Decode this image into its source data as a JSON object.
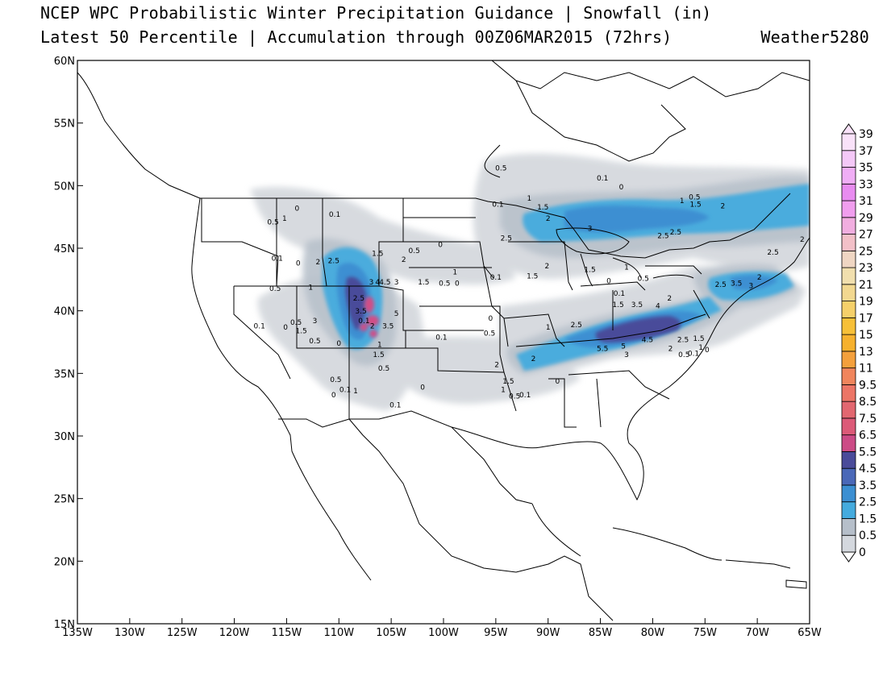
{
  "header": {
    "title_line1": "NCEP WPC Probabilistic Winter Precipitation Guidance | Snowfall (in)",
    "title_line2": "Latest 50 Percentile | Accumulation through 00Z06MAR2015 (72hrs)",
    "brand": "Weather5280"
  },
  "map": {
    "lon_range": [
      -135,
      -65
    ],
    "lat_range": [
      15,
      60
    ],
    "x_ticks": [
      "135W",
      "130W",
      "125W",
      "120W",
      "115W",
      "110W",
      "105W",
      "100W",
      "95W",
      "90W",
      "85W",
      "80W",
      "75W",
      "70W",
      "65W"
    ],
    "y_ticks": [
      "15N",
      "20N",
      "25N",
      "30N",
      "35N",
      "40N",
      "45N",
      "50N",
      "55N",
      "60N"
    ]
  },
  "colorbar": {
    "levels": [
      "0",
      "0.5",
      "1.5",
      "2.5",
      "3.5",
      "4.5",
      "5.5",
      "6.5",
      "7.5",
      "8.5",
      "9.5",
      "11",
      "13",
      "15",
      "17",
      "19",
      "21",
      "23",
      "25",
      "27",
      "29",
      "31",
      "33",
      "35",
      "37",
      "39"
    ],
    "colors": [
      "#ffffff",
      "#d4d8de",
      "#b6bfca",
      "#45abde",
      "#3c8fd2",
      "#4a68b8",
      "#4a4b9a",
      "#cc4b86",
      "#dc5a78",
      "#e26770",
      "#ec7566",
      "#f0855c",
      "#f4a03c",
      "#f6b12e",
      "#f7c038",
      "#f5d06a",
      "#f2d890",
      "#f1dfae",
      "#efd6c3",
      "#f2c0c8",
      "#f1aee0",
      "#f09eee",
      "#e88cf0",
      "#f0aef5",
      "#f4c8f7",
      "#f9e2f9"
    ]
  },
  "contour_labels": [
    {
      "text": "0.5",
      "lon": -94.5,
      "lat": 51.2
    },
    {
      "text": "0.1",
      "lon": -84.8,
      "lat": 50.4
    },
    {
      "text": "0",
      "lon": -83.0,
      "lat": 49.7
    },
    {
      "text": "1",
      "lon": -91.8,
      "lat": 48.8
    },
    {
      "text": "1.5",
      "lon": -90.5,
      "lat": 48.1
    },
    {
      "text": "0.1",
      "lon": -94.8,
      "lat": 48.3
    },
    {
      "text": "2",
      "lon": -90.0,
      "lat": 47.2
    },
    {
      "text": "3",
      "lon": -86.0,
      "lat": 46.4
    },
    {
      "text": "2.5",
      "lon": -79.0,
      "lat": 45.8
    },
    {
      "text": "2.5",
      "lon": -77.8,
      "lat": 46.1
    },
    {
      "text": "1",
      "lon": -77.2,
      "lat": 48.6
    },
    {
      "text": "0.5",
      "lon": -76.0,
      "lat": 48.9
    },
    {
      "text": "1.5",
      "lon": -75.9,
      "lat": 48.3
    },
    {
      "text": "2",
      "lon": -73.3,
      "lat": 48.2
    },
    {
      "text": "2.5",
      "lon": -94.0,
      "lat": 45.6
    },
    {
      "text": "0",
      "lon": -100.3,
      "lat": 45.1
    },
    {
      "text": "0.5",
      "lon": -102.8,
      "lat": 44.6
    },
    {
      "text": "1.5",
      "lon": -106.3,
      "lat": 44.4
    },
    {
      "text": "2",
      "lon": -103.8,
      "lat": 43.9
    },
    {
      "text": "0.1",
      "lon": -110.4,
      "lat": 47.5
    },
    {
      "text": "0",
      "lon": -114.0,
      "lat": 48.0
    },
    {
      "text": "0.5",
      "lon": -116.3,
      "lat": 46.9
    },
    {
      "text": "1",
      "lon": -115.2,
      "lat": 47.2
    },
    {
      "text": "0.1",
      "lon": -115.9,
      "lat": 44.0
    },
    {
      "text": "0",
      "lon": -113.9,
      "lat": 43.6
    },
    {
      "text": "2",
      "lon": -112.0,
      "lat": 43.7
    },
    {
      "text": "2.5",
      "lon": -110.5,
      "lat": 43.8
    },
    {
      "text": "0.5",
      "lon": -116.1,
      "lat": 41.6
    },
    {
      "text": "1",
      "lon": -112.7,
      "lat": 41.7
    },
    {
      "text": "3",
      "lon": -106.9,
      "lat": 42.1
    },
    {
      "text": "4",
      "lon": -106.3,
      "lat": 42.1
    },
    {
      "text": "4.5",
      "lon": -105.6,
      "lat": 42.1
    },
    {
      "text": "3",
      "lon": -104.5,
      "lat": 42.1
    },
    {
      "text": "2.5",
      "lon": -108.1,
      "lat": 40.8
    },
    {
      "text": "3.5",
      "lon": -107.9,
      "lat": 39.8
    },
    {
      "text": "5",
      "lon": -104.5,
      "lat": 39.6
    },
    {
      "text": "2",
      "lon": -106.8,
      "lat": 38.6
    },
    {
      "text": "3.5",
      "lon": -105.3,
      "lat": 38.6
    },
    {
      "text": "0.1",
      "lon": -107.6,
      "lat": 39.0
    },
    {
      "text": "1.5",
      "lon": -106.2,
      "lat": 36.3
    },
    {
      "text": "0.5",
      "lon": -105.7,
      "lat": 35.2
    },
    {
      "text": "1",
      "lon": -106.1,
      "lat": 37.1
    },
    {
      "text": "0.1",
      "lon": -117.6,
      "lat": 38.6
    },
    {
      "text": "0",
      "lon": -115.1,
      "lat": 38.5
    },
    {
      "text": "0.5",
      "lon": -114.1,
      "lat": 38.9
    },
    {
      "text": "1.5",
      "lon": -113.6,
      "lat": 38.2
    },
    {
      "text": "3",
      "lon": -112.3,
      "lat": 39.0
    },
    {
      "text": "0.5",
      "lon": -112.3,
      "lat": 37.4
    },
    {
      "text": "0",
      "lon": -110.0,
      "lat": 37.2
    },
    {
      "text": "0.5",
      "lon": -110.3,
      "lat": 34.3
    },
    {
      "text": "0.1",
      "lon": -109.4,
      "lat": 33.5
    },
    {
      "text": "1",
      "lon": -108.4,
      "lat": 33.4
    },
    {
      "text": "0",
      "lon": -110.5,
      "lat": 33.1
    },
    {
      "text": "0.1",
      "lon": -104.6,
      "lat": 32.3
    },
    {
      "text": "0",
      "lon": -102.0,
      "lat": 33.7
    },
    {
      "text": "0.1",
      "lon": -100.2,
      "lat": 37.7
    },
    {
      "text": "0.5",
      "lon": -95.6,
      "lat": 38.0
    },
    {
      "text": "0",
      "lon": -95.5,
      "lat": 39.2
    },
    {
      "text": "0.1",
      "lon": -95.0,
      "lat": 42.5
    },
    {
      "text": "1",
      "lon": -98.9,
      "lat": 42.9
    },
    {
      "text": "0.5",
      "lon": -99.9,
      "lat": 42.0
    },
    {
      "text": "0",
      "lon": -98.7,
      "lat": 42.0
    },
    {
      "text": "1.5",
      "lon": -101.9,
      "lat": 42.1
    },
    {
      "text": "1",
      "lon": -90.0,
      "lat": 38.5
    },
    {
      "text": "2.5",
      "lon": -87.3,
      "lat": 38.7
    },
    {
      "text": "2",
      "lon": -91.4,
      "lat": 36.0
    },
    {
      "text": "2",
      "lon": -94.9,
      "lat": 35.5
    },
    {
      "text": "1.5",
      "lon": -93.8,
      "lat": 34.2
    },
    {
      "text": "1",
      "lon": -94.3,
      "lat": 33.5
    },
    {
      "text": "0.5",
      "lon": -93.2,
      "lat": 33.0
    },
    {
      "text": "0.1",
      "lon": -92.2,
      "lat": 33.1
    },
    {
      "text": "0",
      "lon": -89.1,
      "lat": 34.2
    },
    {
      "text": "1.5",
      "lon": -91.5,
      "lat": 42.6
    },
    {
      "text": "2",
      "lon": -90.1,
      "lat": 43.4
    },
    {
      "text": "1.5",
      "lon": -86.0,
      "lat": 43.1
    },
    {
      "text": "1",
      "lon": -82.5,
      "lat": 43.3
    },
    {
      "text": "0.5",
      "lon": -80.9,
      "lat": 42.4
    },
    {
      "text": "0",
      "lon": -84.2,
      "lat": 42.2
    },
    {
      "text": "0.1",
      "lon": -83.2,
      "lat": 41.2
    },
    {
      "text": "1.5",
      "lon": -83.3,
      "lat": 40.3
    },
    {
      "text": "3.5",
      "lon": -81.5,
      "lat": 40.3
    },
    {
      "text": "4",
      "lon": -79.5,
      "lat": 40.2
    },
    {
      "text": "2",
      "lon": -78.4,
      "lat": 40.8
    },
    {
      "text": "5.5",
      "lon": -84.8,
      "lat": 36.8
    },
    {
      "text": "5",
      "lon": -82.8,
      "lat": 37.0
    },
    {
      "text": "3",
      "lon": -82.5,
      "lat": 36.3
    },
    {
      "text": "4.5",
      "lon": -80.5,
      "lat": 37.5
    },
    {
      "text": "2",
      "lon": -78.3,
      "lat": 36.8
    },
    {
      "text": "2.5",
      "lon": -77.1,
      "lat": 37.5
    },
    {
      "text": "1.5",
      "lon": -75.6,
      "lat": 37.6
    },
    {
      "text": "1",
      "lon": -75.4,
      "lat": 36.9
    },
    {
      "text": "0.5",
      "lon": -77.0,
      "lat": 36.3
    },
    {
      "text": "0.1",
      "lon": -76.1,
      "lat": 36.4
    },
    {
      "text": "0",
      "lon": -74.8,
      "lat": 36.7
    },
    {
      "text": "2.5",
      "lon": -73.5,
      "lat": 41.9
    },
    {
      "text": "3.5",
      "lon": -72.0,
      "lat": 42.0
    },
    {
      "text": "3",
      "lon": -70.6,
      "lat": 41.8
    },
    {
      "text": "2",
      "lon": -69.8,
      "lat": 42.5
    },
    {
      "text": "2.5",
      "lon": -68.5,
      "lat": 44.5
    },
    {
      "text": "2",
      "lon": -65.7,
      "lat": 45.5
    }
  ]
}
